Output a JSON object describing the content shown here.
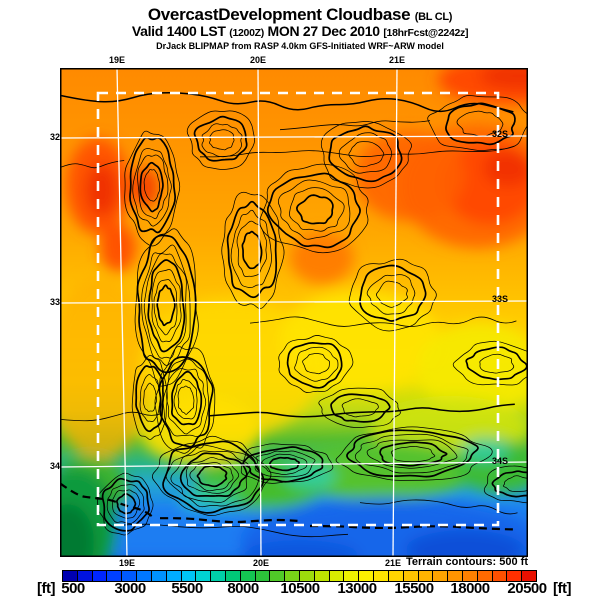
{
  "title": {
    "main": "OvercastDevelopment Cloudbase",
    "param_code": "(BL CL)",
    "valid_prefix": "Valid 1400 LST",
    "valid_zulu": "(1200Z)",
    "valid_date": "MON 27 Dec 2010",
    "forecast_tag": "[18hrFcst@2242z]",
    "model_credit": "DrJack BLIPMAP from RASP 4.0km GFS-Initiated WRF~ARW model"
  },
  "axis": {
    "top": [
      "19E",
      "20E",
      "21E"
    ],
    "bottom": [
      "19E",
      "20E",
      "21E"
    ],
    "left": [
      "32S",
      "33S",
      "34S"
    ],
    "right": [
      "32S",
      "33S",
      "34S"
    ]
  },
  "colorbar": {
    "unit_left": "[ft]",
    "unit_right": "[ft]",
    "labels": [
      "500",
      "3000",
      "5500",
      "8000",
      "10500",
      "13000",
      "15500",
      "18000",
      "20500"
    ],
    "note": "Terrain contours: 500 ft",
    "colors": [
      "#0000b0",
      "#0013e0",
      "#0026ff",
      "#0040ff",
      "#005aff",
      "#0078ff",
      "#0092ff",
      "#00acff",
      "#00c4f4",
      "#00d2d2",
      "#00cfa8",
      "#00c878",
      "#14c452",
      "#2cc23a",
      "#50ca28",
      "#78d418",
      "#9cdc0c",
      "#bce400",
      "#d8ec00",
      "#eef200",
      "#fcf000",
      "#ffe400",
      "#ffd400",
      "#ffc400",
      "#ffb400",
      "#ffa400",
      "#ff9400",
      "#ff8000",
      "#ff6a00",
      "#ff5000",
      "#ff3000",
      "#e81000"
    ]
  },
  "chart_data": {
    "type": "heatmap",
    "title": "OvercastDevelopment Cloudbase (BL CL)",
    "subtitle": "Valid 1400 LST (1200Z) MON 27 Dec 2010 [18hrFcst@2242z]",
    "units": "ft",
    "scale_values": [
      500,
      3000,
      5500,
      8000,
      10500,
      13000,
      15500,
      18000,
      20500
    ],
    "lon_ticks": [
      "19E",
      "20E",
      "21E"
    ],
    "lat_ticks": [
      "32S",
      "33S",
      "34S"
    ],
    "terrain_contour_interval_ft": 500,
    "legend_position": "bottom",
    "notes": "High cloudbase (orange/red ~15000-20000 ft) in north, decreasing through yellow/green to low cloudbase (blue ~500-4000 ft) along the southern coast; dashed white box marks inner model domain."
  }
}
